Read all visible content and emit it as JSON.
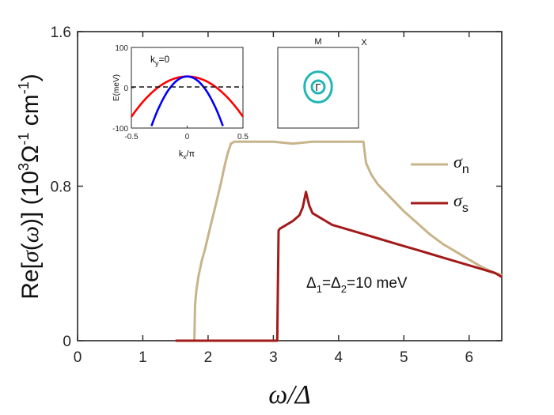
{
  "chart_data": [
    {
      "type": "line",
      "title": "",
      "xlabel": "ω/Δ",
      "ylabel": "Re[σ(ω)] (10³Ω⁻¹ cm⁻¹)",
      "ylabel_parts": {
        "main": "Re[",
        "sym": "σ",
        "open": "(",
        "omega": "ω",
        "close": ")] (10",
        "exp3": "3",
        "omega_unit": "Ω",
        "exp_neg1a": "-1",
        "cm": " cm",
        "exp_neg1b": "-1",
        "end": ")"
      },
      "xlim": [
        0,
        6.5
      ],
      "ylim": [
        0,
        1.6
      ],
      "xticks": [
        "0",
        "1",
        "2",
        "3",
        "4",
        "5",
        "6"
      ],
      "yticks": [
        "0",
        "0.8",
        "1.6"
      ],
      "grid": false,
      "legend_placement": "right",
      "annotation": {
        "delta": "Δ",
        "sub1": "1",
        "eq": "=",
        "sub2": "2",
        "value": "=10 meV"
      },
      "series": [
        {
          "name": "σ",
          "name_sub": "n",
          "color": "#c8b48a",
          "x": [
            1.5,
            1.79,
            1.8,
            1.82,
            1.85,
            1.9,
            1.95,
            2.0,
            2.05,
            2.1,
            2.15,
            2.2,
            2.25,
            2.3,
            2.35,
            2.4,
            2.5,
            2.7,
            3.0,
            3.3,
            3.6,
            3.9,
            4.2,
            4.38,
            4.42,
            4.5,
            4.6,
            4.8,
            5.0,
            5.2,
            5.4,
            5.6,
            5.8,
            6.0,
            6.2,
            6.4,
            6.5
          ],
          "y": [
            0,
            0,
            0.18,
            0.26,
            0.33,
            0.41,
            0.47,
            0.54,
            0.61,
            0.68,
            0.75,
            0.82,
            0.9,
            0.97,
            1.02,
            1.03,
            1.03,
            1.03,
            1.03,
            1.02,
            1.03,
            1.03,
            1.03,
            1.03,
            0.92,
            0.86,
            0.81,
            0.74,
            0.67,
            0.61,
            0.55,
            0.5,
            0.46,
            0.42,
            0.38,
            0.35,
            0.34
          ]
        },
        {
          "name": "σ",
          "name_sub": "s",
          "color": "#a31a1a",
          "x": [
            1.5,
            3.06,
            3.08,
            3.1,
            3.2,
            3.3,
            3.4,
            3.45,
            3.5,
            3.55,
            3.6,
            3.7,
            3.8,
            3.9,
            4.0,
            4.2,
            4.4,
            4.6,
            4.8,
            5.0,
            5.2,
            5.4,
            5.6,
            5.8,
            6.0,
            6.2,
            6.4,
            6.5
          ],
          "y": [
            0,
            0,
            0.57,
            0.58,
            0.6,
            0.62,
            0.65,
            0.69,
            0.77,
            0.7,
            0.66,
            0.64,
            0.62,
            0.6,
            0.59,
            0.57,
            0.55,
            0.53,
            0.51,
            0.49,
            0.47,
            0.45,
            0.43,
            0.41,
            0.39,
            0.37,
            0.35,
            0.33
          ]
        }
      ]
    },
    {
      "type": "line",
      "title": "",
      "xlabel": "k_x/π",
      "xlabel_parts": {
        "k": "k",
        "sub": "x",
        "rest": "/π"
      },
      "ylabel": "E(meV)",
      "xlim": [
        -0.5,
        0.5
      ],
      "ylim": [
        -100,
        100
      ],
      "xticks": [
        "-0.5",
        "0",
        "0.5"
      ],
      "yticks": [
        "-100",
        "0",
        "100"
      ],
      "annotation": {
        "k": "k",
        "sub": "y",
        "rest": "=0"
      },
      "fermi_level": 0,
      "series": [
        {
          "color": "#ff0000",
          "kind": "parabola",
          "top": 28,
          "curvature": -400
        },
        {
          "color": "#0000ff",
          "kind": "parabola",
          "top": 28,
          "curvature": -1200
        }
      ]
    }
  ],
  "bz_inset": {
    "labels": {
      "M": "M",
      "X": "X",
      "Gamma": "Γ"
    },
    "contour_color": "#22b5b5"
  }
}
